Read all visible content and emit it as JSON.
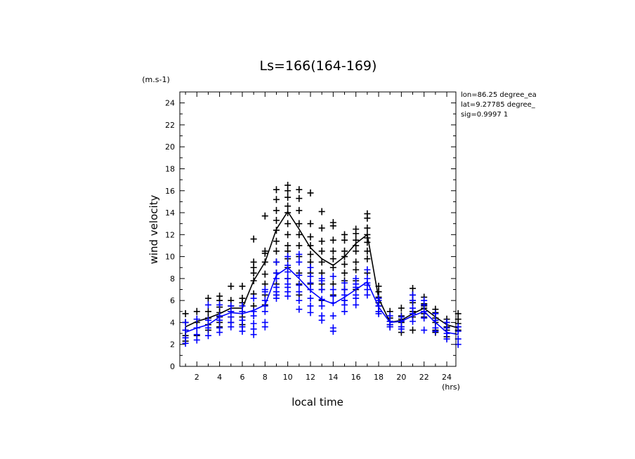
{
  "chart_data": {
    "type": "scatter",
    "title": "Ls=166(164-169)",
    "xlabel": "local time",
    "ylabel": "wind velocity",
    "x_unit": "(hrs)",
    "y_unit": "(m.s-1)",
    "xlim": [
      0.5,
      24.8
    ],
    "ylim": [
      0,
      25
    ],
    "xticks": [
      2,
      4,
      6,
      8,
      10,
      12,
      14,
      16,
      18,
      20,
      22,
      24
    ],
    "yticks": [
      0,
      2,
      4,
      6,
      8,
      10,
      12,
      14,
      16,
      18,
      20,
      22,
      24
    ],
    "grid": false,
    "info_lines": [
      "lon=86.25 degree_ea",
      "lat=9.27785 degree_",
      "sig=0.9997 1"
    ],
    "series": [
      {
        "color": "#000000",
        "mean_x": [
          1,
          2,
          3,
          4,
          5,
          6,
          7,
          8,
          9,
          10,
          11,
          12,
          13,
          14,
          15,
          16,
          17,
          18,
          19,
          20,
          21,
          22,
          23,
          24,
          25
        ],
        "mean_y": [
          3.6,
          4.1,
          4.4,
          4.8,
          5.3,
          5.3,
          7.8,
          9.5,
          12.5,
          14.1,
          12.5,
          10.8,
          9.8,
          9.2,
          10,
          11.2,
          12,
          6.2,
          4,
          4.2,
          4.8,
          5.3,
          4.5,
          3.8,
          3.5
        ],
        "points": {
          "x": [
            1,
            1,
            1,
            1,
            1,
            2,
            2,
            2,
            2,
            2,
            3,
            3,
            3,
            3,
            3,
            4,
            4,
            4,
            4,
            4,
            4,
            4,
            5,
            5,
            5,
            5,
            5,
            5,
            6,
            6,
            6,
            6,
            6,
            6,
            7,
            7,
            7,
            7,
            7,
            7,
            7,
            8,
            8,
            8,
            8,
            8,
            8,
            8,
            8,
            9,
            9,
            9,
            9,
            9,
            9,
            9,
            9,
            9,
            9,
            9,
            10,
            10,
            10,
            10,
            10,
            10,
            10,
            10,
            10,
            10,
            10,
            10,
            11,
            11,
            11,
            11,
            11,
            11,
            11,
            11,
            11,
            11,
            12,
            12,
            12,
            12,
            12,
            12,
            12,
            12,
            12,
            13,
            13,
            13,
            13,
            13,
            13,
            13,
            13,
            13,
            14,
            14,
            14,
            14,
            14,
            14,
            14,
            14,
            14,
            15,
            15,
            15,
            15,
            15,
            15,
            15,
            15,
            15,
            16,
            16,
            16,
            16,
            16,
            16,
            16,
            16,
            16,
            17,
            17,
            17,
            17,
            17,
            17,
            17,
            17,
            17,
            18,
            18,
            18,
            18,
            18,
            18,
            19,
            19,
            19,
            19,
            19,
            20,
            20,
            20,
            20,
            20,
            20,
            21,
            21,
            21,
            21,
            21,
            21,
            21,
            22,
            22,
            22,
            22,
            22,
            22,
            23,
            23,
            23,
            23,
            23,
            23,
            24,
            24,
            24,
            24,
            24,
            25,
            25,
            25,
            25,
            25
          ],
          "y": [
            4.8,
            4.0,
            3.3,
            2.8,
            2.3,
            5.0,
            4.3,
            4.0,
            3.5,
            2.8,
            6.2,
            5.0,
            4.4,
            3.8,
            3.3,
            6.4,
            6.0,
            5.4,
            4.9,
            4.5,
            4.0,
            3.6,
            7.3,
            6.0,
            5.5,
            5.0,
            4.5,
            4.0,
            7.3,
            6.2,
            5.8,
            5.0,
            4.5,
            3.8,
            11.6,
            9.5,
            9.0,
            8.5,
            7.8,
            6.6,
            5.5,
            13.7,
            10.5,
            10.3,
            9.5,
            8.4,
            7.5,
            6.5,
            5.6,
            16.1,
            15.2,
            14.2,
            13.3,
            12.4,
            11.4,
            10.5,
            9.5,
            8.5,
            7.5,
            6.5,
            16.5,
            16.0,
            15.4,
            14.6,
            14.0,
            13.0,
            12.0,
            11.0,
            10.5,
            9.8,
            9.0,
            8.0,
            16.1,
            15.3,
            14.2,
            13.0,
            12.0,
            11.0,
            10.0,
            8.5,
            7.5,
            6.5,
            15.8,
            13.0,
            11.8,
            11.0,
            10.2,
            9.5,
            9.0,
            8.5,
            7.5,
            14.1,
            12.6,
            11.4,
            10.5,
            9.5,
            8.5,
            7.5,
            7.0,
            6.0,
            13.1,
            12.8,
            11.5,
            10.5,
            9.8,
            9.0,
            8.2,
            7.5,
            6.5,
            12.0,
            11.5,
            10.5,
            10.0,
            9.3,
            8.5,
            7.8,
            7.0,
            6.0,
            12.5,
            12.1,
            11.5,
            11.0,
            10.5,
            9.5,
            8.8,
            7.8,
            7.0,
            13.9,
            13.5,
            12.6,
            12.0,
            11.7,
            11.3,
            10.5,
            9.8,
            8.5,
            7.3,
            6.8,
            6.3,
            5.8,
            5.5,
            5.0,
            5.0,
            4.4,
            4.1,
            3.8,
            3.6,
            5.3,
            4.6,
            4.3,
            4.0,
            3.6,
            3.1,
            7.1,
            6.5,
            6.0,
            5.8,
            5.0,
            4.5,
            3.3,
            6.3,
            5.7,
            5.5,
            5.3,
            4.8,
            4.5,
            5.2,
            4.9,
            4.4,
            4.0,
            3.3,
            3.1,
            4.3,
            4.0,
            3.6,
            3.3,
            2.7,
            4.8,
            4.3,
            3.9,
            3.6,
            3.3
          ]
        }
      },
      {
        "color": "#0000ff",
        "mean_x": [
          1,
          2,
          3,
          4,
          5,
          6,
          7,
          8,
          9,
          10,
          11,
          12,
          13,
          14,
          15,
          16,
          17,
          18,
          19,
          20,
          21,
          22,
          23,
          24,
          25
        ],
        "mean_y": [
          3.1,
          3.5,
          3.8,
          4.5,
          4.9,
          4.8,
          5.1,
          5.6,
          8.3,
          9.0,
          8.0,
          6.9,
          6.1,
          5.7,
          6.3,
          7.0,
          7.7,
          5.4,
          4.0,
          4.1,
          4.6,
          5.0,
          4.0,
          3.1,
          2.9
        ],
        "points": {
          "x": [
            1,
            1,
            1,
            1,
            2,
            2,
            2,
            2,
            3,
            3,
            3,
            3,
            4,
            4,
            4,
            4,
            4,
            5,
            5,
            5,
            5,
            5,
            6,
            6,
            6,
            6,
            6,
            7,
            7,
            7,
            7,
            7,
            7,
            8,
            8,
            8,
            8,
            8,
            8,
            8,
            9,
            9,
            9,
            9,
            9,
            9,
            9,
            10,
            10,
            10,
            10,
            10,
            10,
            10,
            10,
            11,
            11,
            11,
            11,
            11,
            11,
            11,
            12,
            12,
            12,
            12,
            12,
            12,
            12,
            13,
            13,
            13,
            13,
            13,
            13,
            13,
            14,
            14,
            14,
            14,
            14,
            14,
            14,
            15,
            15,
            15,
            15,
            15,
            15,
            16,
            16,
            16,
            16,
            16,
            16,
            17,
            17,
            17,
            17,
            17,
            17,
            18,
            18,
            18,
            18,
            18,
            19,
            19,
            19,
            19,
            20,
            20,
            20,
            20,
            21,
            21,
            21,
            21,
            21,
            22,
            22,
            22,
            22,
            22,
            23,
            23,
            23,
            23,
            24,
            24,
            24,
            24,
            25,
            25,
            25,
            25
          ],
          "y": [
            4.0,
            3.3,
            2.6,
            2.1,
            4.3,
            3.5,
            2.9,
            2.4,
            5.6,
            4.2,
            3.5,
            2.8,
            5.6,
            4.6,
            4.2,
            3.5,
            3.1,
            5.5,
            5.0,
            4.5,
            4.0,
            3.6,
            5.5,
            5.0,
            4.2,
            3.6,
            3.2,
            6.2,
            5.0,
            4.6,
            3.9,
            3.4,
            2.9,
            7.0,
            6.8,
            6.0,
            5.5,
            5.0,
            4.0,
            3.6,
            9.5,
            8.5,
            8.0,
            7.2,
            6.8,
            6.5,
            6.2,
            10.0,
            9.2,
            8.6,
            8.0,
            7.5,
            7.2,
            6.8,
            6.4,
            10.2,
            9.5,
            8.3,
            7.4,
            6.8,
            6.0,
            5.2,
            9.0,
            8.2,
            7.6,
            7.0,
            6.2,
            5.5,
            4.9,
            8.0,
            7.8,
            7.0,
            6.1,
            5.5,
            4.6,
            4.2,
            8.2,
            7.0,
            6.4,
            5.8,
            4.6,
            3.5,
            3.2,
            7.6,
            7.0,
            6.5,
            6.0,
            5.6,
            5.0,
            8.0,
            7.5,
            7.2,
            6.5,
            6.2,
            5.6,
            8.8,
            8.0,
            7.6,
            7.4,
            7.0,
            6.5,
            6.2,
            6.0,
            5.5,
            5.0,
            4.8,
            4.6,
            4.1,
            3.8,
            3.6,
            4.5,
            4.1,
            3.6,
            3.4,
            6.5,
            6.0,
            5.3,
            4.8,
            4.1,
            6.0,
            5.6,
            5.0,
            4.4,
            3.3,
            4.8,
            4.2,
            3.5,
            3.2,
            4.0,
            3.5,
            3.0,
            2.5,
            3.6,
            3.2,
            2.5,
            2.0
          ]
        }
      }
    ]
  }
}
